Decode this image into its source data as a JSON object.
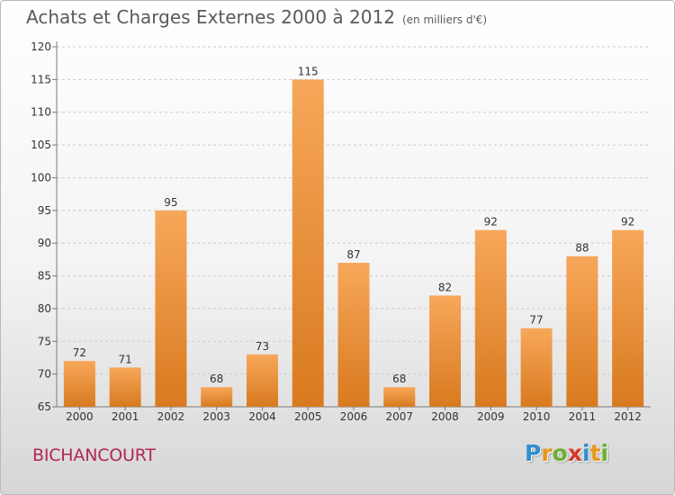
{
  "header": {
    "title": "Achats et Charges Externes 2000 à 2012",
    "unit": "(en milliers d'€)"
  },
  "footer": {
    "place": "BICHANCOURT",
    "logo_letters": [
      "P",
      "r",
      "o",
      "x",
      "i",
      "t",
      "i"
    ],
    "logo_colors": [
      "#2f8fd0",
      "#e8961b",
      "#6bb033",
      "#d53a2c",
      "#2f8fd0",
      "#e8961b",
      "#6bb033"
    ]
  },
  "colors": {
    "bar_light": "#f7a75a",
    "bar_dark": "#d87a1f",
    "axis": "#7a7a7a",
    "grid": "#cccccc"
  },
  "chart_data": {
    "type": "bar",
    "title": "Achats et Charges Externes 2000 à 2012",
    "subtitle": "(en milliers d'€)",
    "categories": [
      "2000",
      "2001",
      "2002",
      "2003",
      "2004",
      "2005",
      "2006",
      "2007",
      "2008",
      "2009",
      "2010",
      "2011",
      "2012"
    ],
    "values": [
      72,
      71,
      95,
      68,
      73,
      115,
      87,
      68,
      82,
      92,
      77,
      88,
      92
    ],
    "ylim": [
      65,
      120
    ],
    "yticks": [
      65,
      70,
      75,
      80,
      85,
      90,
      95,
      100,
      105,
      110,
      115,
      120
    ],
    "grid": "horizontal",
    "legend": "none"
  }
}
